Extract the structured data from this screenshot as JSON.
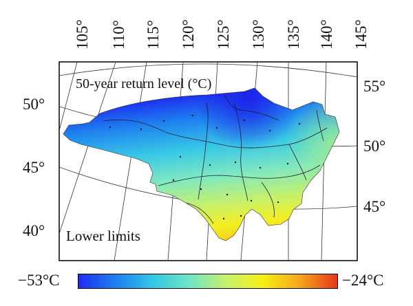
{
  "map": {
    "title": "50-year return level (°C)",
    "subtitle": "Lower limits",
    "longitude_ticks": [
      "105°",
      "110°",
      "115°",
      "120°",
      "125°",
      "130°",
      "135°",
      "140°",
      "145°"
    ],
    "latitude_ticks_left": [
      "50°",
      "45°",
      "40°"
    ],
    "latitude_ticks_right": [
      "55°",
      "50°",
      "45°"
    ]
  },
  "colorbar": {
    "min_label": "−53°C",
    "max_label": "−24°C",
    "min_value": -53,
    "max_value": -24,
    "colors": [
      "#1d2df0",
      "#1e7ff2",
      "#33c6e6",
      "#6fe6c4",
      "#c6f06a",
      "#f7ef12",
      "#f3a41c",
      "#e8371a"
    ]
  }
}
